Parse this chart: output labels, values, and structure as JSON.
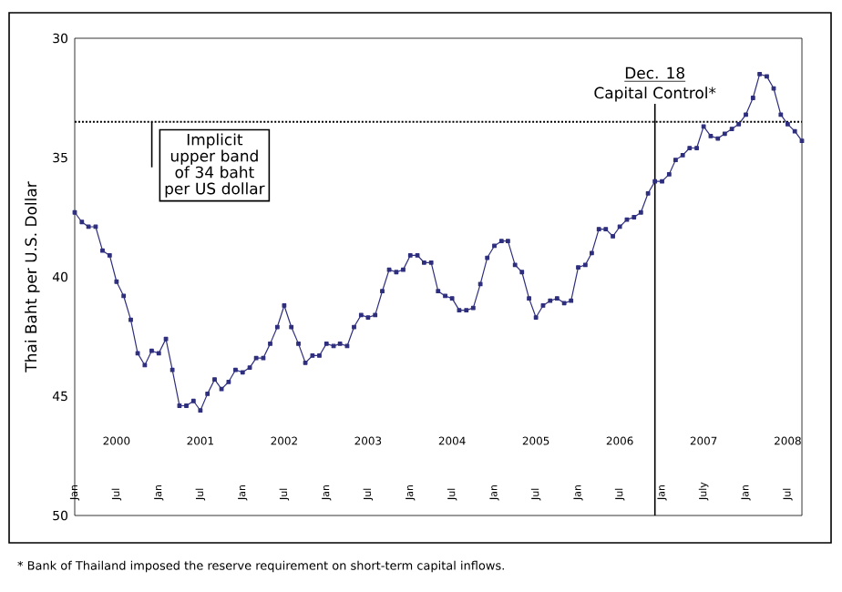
{
  "chart_data": {
    "type": "line",
    "ylabel": "Thai Baht per U.S. Dollar",
    "x": [
      "2000-01",
      "2000-02",
      "2000-03",
      "2000-04",
      "2000-05",
      "2000-06",
      "2000-07",
      "2000-08",
      "2000-09",
      "2000-10",
      "2000-11",
      "2000-12",
      "2001-01",
      "2001-02",
      "2001-03",
      "2001-04",
      "2001-05",
      "2001-06",
      "2001-07",
      "2001-08",
      "2001-09",
      "2001-10",
      "2001-11",
      "2001-12",
      "2002-01",
      "2002-02",
      "2002-03",
      "2002-04",
      "2002-05",
      "2002-06",
      "2002-07",
      "2002-08",
      "2002-09",
      "2002-10",
      "2002-11",
      "2002-12",
      "2003-01",
      "2003-02",
      "2003-03",
      "2003-04",
      "2003-05",
      "2003-06",
      "2003-07",
      "2003-08",
      "2003-09",
      "2003-10",
      "2003-11",
      "2003-12",
      "2004-01",
      "2004-02",
      "2004-03",
      "2004-04",
      "2004-05",
      "2004-06",
      "2004-07",
      "2004-08",
      "2004-09",
      "2004-10",
      "2004-11",
      "2004-12",
      "2005-01",
      "2005-02",
      "2005-03",
      "2005-04",
      "2005-05",
      "2005-06",
      "2005-07",
      "2005-08",
      "2005-09",
      "2005-10",
      "2005-11",
      "2005-12",
      "2006-01",
      "2006-02",
      "2006-03",
      "2006-04",
      "2006-05",
      "2006-06",
      "2006-07",
      "2006-08",
      "2006-09",
      "2006-10",
      "2006-11",
      "2006-12",
      "2007-01",
      "2007-02",
      "2007-03",
      "2007-04",
      "2007-05",
      "2007-06",
      "2007-07",
      "2007-08",
      "2007-09",
      "2007-10",
      "2007-11",
      "2007-12",
      "2008-01",
      "2008-02",
      "2008-03",
      "2008-04",
      "2008-05",
      "2008-06",
      "2008-07",
      "2008-08",
      "2008-09"
    ],
    "series": [
      {
        "color": "#2e2e7e",
        "values": [
          37.3,
          37.7,
          37.9,
          37.9,
          38.9,
          39.1,
          40.2,
          40.8,
          41.8,
          43.2,
          43.7,
          43.1,
          43.2,
          42.6,
          43.9,
          45.4,
          45.4,
          45.2,
          45.6,
          44.9,
          44.3,
          44.7,
          44.4,
          43.9,
          44.0,
          43.8,
          43.4,
          43.4,
          42.8,
          42.1,
          41.2,
          42.1,
          42.8,
          43.6,
          43.3,
          43.3,
          42.8,
          42.9,
          42.8,
          42.9,
          42.1,
          41.6,
          41.7,
          41.6,
          40.6,
          39.7,
          39.8,
          39.7,
          39.1,
          39.1,
          39.4,
          39.4,
          40.6,
          40.8,
          40.9,
          41.4,
          41.4,
          41.3,
          40.3,
          39.2,
          38.7,
          38.5,
          38.5,
          39.5,
          39.8,
          40.9,
          41.7,
          41.2,
          41.0,
          40.9,
          41.1,
          41.0,
          39.6,
          39.5,
          39.0,
          38.0,
          38.0,
          38.3,
          37.9,
          37.6,
          37.5,
          37.3,
          36.5,
          36.0,
          36.0,
          35.7,
          35.1,
          34.9,
          34.6,
          34.6,
          33.7,
          34.1,
          34.2,
          34.0,
          33.8,
          33.6,
          33.2,
          32.5,
          31.5,
          31.6,
          32.1,
          33.2,
          33.6,
          33.9,
          34.3
        ]
      }
    ],
    "marker": "square",
    "xlim": [
      "2000-01",
      "2008-09"
    ],
    "xticks": [
      {
        "value": "2000-01",
        "label": "Jan"
      },
      {
        "value": "2000-07",
        "label": "Jul"
      },
      {
        "value": "2001-01",
        "label": "Jan"
      },
      {
        "value": "2001-07",
        "label": "Jul"
      },
      {
        "value": "2002-01",
        "label": "Jan"
      },
      {
        "value": "2002-07",
        "label": "Jul"
      },
      {
        "value": "2003-01",
        "label": "Jan"
      },
      {
        "value": "2003-07",
        "label": "Jul"
      },
      {
        "value": "2004-01",
        "label": "Jan"
      },
      {
        "value": "2004-07",
        "label": "Jul"
      },
      {
        "value": "2005-01",
        "label": "Jan"
      },
      {
        "value": "2005-07",
        "label": "Jul"
      },
      {
        "value": "2006-01",
        "label": "Jan"
      },
      {
        "value": "2006-07",
        "label": "Jul"
      },
      {
        "value": "2007-01",
        "label": "Jan"
      },
      {
        "value": "2007-07",
        "label": "July"
      },
      {
        "value": "2008-01",
        "label": "Jan"
      },
      {
        "value": "2008-07",
        "label": "Jul"
      }
    ],
    "ylim": [
      50,
      30
    ],
    "yticks": [
      30,
      35,
      40,
      45,
      50
    ],
    "ref_lines": [
      {
        "axis": "y",
        "value": 33.5,
        "label": "Implicit upper band of 34 baht per US dollar",
        "line_style": "dotted"
      },
      {
        "axis": "x",
        "value": "2006-12",
        "label": "Dec. 18"
      }
    ],
    "x2lim": [
      "2000-01",
      "2008-09"
    ],
    "x2ticks": [
      {
        "value": "2000-07",
        "label": "2000"
      },
      {
        "value": "2001-07",
        "label": "2001"
      },
      {
        "value": "2002-07",
        "label": "2002"
      },
      {
        "value": "2003-07",
        "label": "2003"
      },
      {
        "value": "2004-07",
        "label": "2004"
      },
      {
        "value": "2005-07",
        "label": "2005"
      },
      {
        "value": "2006-07",
        "label": "2006"
      },
      {
        "value": "2007-07",
        "label": "2007"
      },
      {
        "value": "2008-07",
        "label": "2008"
      }
    ],
    "annotations": [
      "Capital Control*",
      "* Bank of Thailand imposed the reserve requirement on short-term capital inflows."
    ]
  }
}
